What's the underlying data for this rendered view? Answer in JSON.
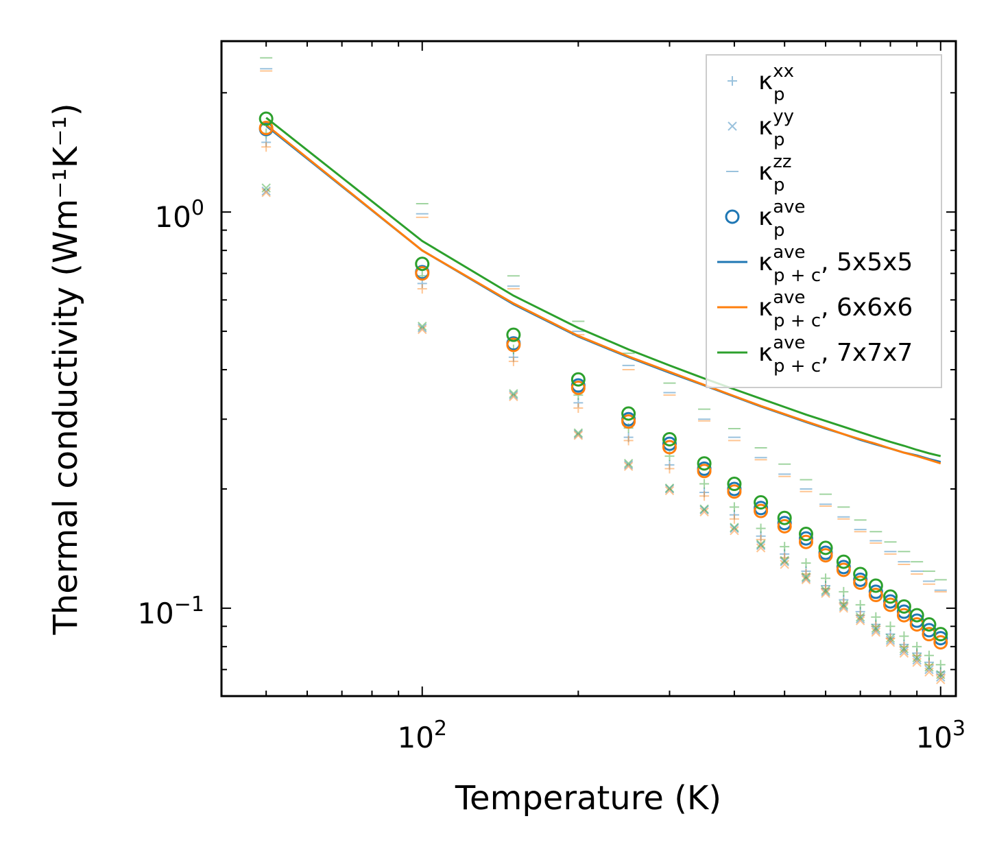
{
  "chart_data": {
    "type": "scatter",
    "title": "",
    "xlabel": "Temperature (K)",
    "ylabel": "Thermal conductivity (Wm⁻¹K⁻¹)",
    "xscale": "log",
    "yscale": "log",
    "xlim": [
      41,
      1070
    ],
    "ylim": [
      0.06,
      2.7
    ],
    "grid": false,
    "legend_position": "top-right",
    "x_major_ticks": [
      {
        "base": "10",
        "exp": "2"
      },
      {
        "base": "10",
        "exp": "3"
      }
    ],
    "y_major_ticks": [
      {
        "base": "10",
        "exp": "−1"
      },
      {
        "base": "10",
        "exp": "0"
      }
    ],
    "temperatures": [
      50,
      100,
      150,
      200,
      250,
      300,
      350,
      400,
      450,
      500,
      550,
      600,
      650,
      700,
      750,
      800,
      850,
      900,
      950,
      1000
    ],
    "colors": {
      "5x5x5": "#1f77b4",
      "6x6x6": "#ff7f0e",
      "7x7x7": "#2ca02c"
    },
    "legend": [
      {
        "marker": "plus",
        "kappa": "κ",
        "sub": "p",
        "sup": "xx",
        "suffix": ""
      },
      {
        "marker": "cross",
        "kappa": "κ",
        "sub": "p",
        "sup": "yy",
        "suffix": ""
      },
      {
        "marker": "hline",
        "kappa": "κ",
        "sub": "p",
        "sup": "zz",
        "suffix": ""
      },
      {
        "marker": "circle",
        "kappa": "κ",
        "sub": "p",
        "sup": "ave",
        "suffix": ""
      },
      {
        "marker": "line-5x5x5",
        "kappa": "κ",
        "sub": "p + c",
        "sup": "ave",
        "suffix": ", 5x5x5"
      },
      {
        "marker": "line-6x6x6",
        "kappa": "κ",
        "sub": "p + c",
        "sup": "ave",
        "suffix": ", 6x6x6"
      },
      {
        "marker": "line-7x7x7",
        "kappa": "κ",
        "sub": "p + c",
        "sup": "ave",
        "suffix": ", 7x7x7"
      }
    ],
    "series": [
      {
        "name": "kappa_p_xx 5x5x5",
        "marker": "plus",
        "color": "#1f77b4",
        "values": [
          1.5,
          0.66,
          0.43,
          0.33,
          0.27,
          0.23,
          0.196,
          0.172,
          0.152,
          0.137,
          0.124,
          0.114,
          0.105,
          0.098,
          0.091,
          0.086,
          0.081,
          0.077,
          0.073,
          0.069
        ]
      },
      {
        "name": "kappa_p_xx 6x6x6",
        "marker": "plus",
        "color": "#ff7f0e",
        "values": [
          1.46,
          0.64,
          0.42,
          0.32,
          0.265,
          0.225,
          0.192,
          0.168,
          0.149,
          0.134,
          0.122,
          0.112,
          0.103,
          0.096,
          0.09,
          0.084,
          0.08,
          0.076,
          0.072,
          0.068
        ]
      },
      {
        "name": "kappa_p_xx 7x7x7",
        "marker": "plus",
        "color": "#2ca02c",
        "values": [
          1.58,
          0.69,
          0.45,
          0.345,
          0.285,
          0.242,
          0.206,
          0.18,
          0.159,
          0.143,
          0.13,
          0.119,
          0.11,
          0.102,
          0.095,
          0.09,
          0.085,
          0.08,
          0.076,
          0.072
        ]
      },
      {
        "name": "kappa_p_yy 5x5x5",
        "marker": "cross",
        "color": "#1f77b4",
        "values": [
          1.13,
          0.51,
          0.345,
          0.275,
          0.23,
          0.2,
          0.177,
          0.159,
          0.144,
          0.131,
          0.119,
          0.11,
          0.101,
          0.094,
          0.088,
          0.083,
          0.078,
          0.074,
          0.07,
          0.067
        ]
      },
      {
        "name": "kappa_p_yy 6x6x6",
        "marker": "cross",
        "color": "#ff7f0e",
        "values": [
          1.12,
          0.505,
          0.342,
          0.273,
          0.228,
          0.198,
          0.175,
          0.157,
          0.142,
          0.129,
          0.118,
          0.109,
          0.1,
          0.093,
          0.087,
          0.082,
          0.077,
          0.073,
          0.069,
          0.066
        ]
      },
      {
        "name": "kappa_p_yy 7x7x7",
        "marker": "cross",
        "color": "#2ca02c",
        "values": [
          1.15,
          0.515,
          0.348,
          0.277,
          0.232,
          0.201,
          0.178,
          0.16,
          0.145,
          0.132,
          0.12,
          0.111,
          0.102,
          0.095,
          0.089,
          0.084,
          0.079,
          0.075,
          0.071,
          0.068
        ]
      },
      {
        "name": "kappa_p_zz 5x5x5",
        "marker": "hline",
        "color": "#1f77b4",
        "values": [
          2.3,
          0.99,
          0.65,
          0.5,
          0.41,
          0.35,
          0.3,
          0.27,
          0.24,
          0.218,
          0.2,
          0.183,
          0.17,
          0.158,
          0.148,
          0.139,
          0.131,
          0.124,
          0.117,
          0.111
        ]
      },
      {
        "name": "kappa_p_zz 6x6x6",
        "marker": "hline",
        "color": "#ff7f0e",
        "values": [
          2.27,
          0.97,
          0.64,
          0.49,
          0.4,
          0.345,
          0.297,
          0.265,
          0.237,
          0.215,
          0.197,
          0.181,
          0.168,
          0.156,
          0.146,
          0.137,
          0.129,
          0.122,
          0.115,
          0.11
        ]
      },
      {
        "name": "kappa_p_zz 7x7x7",
        "marker": "hline",
        "color": "#2ca02c",
        "values": [
          2.45,
          1.05,
          0.69,
          0.53,
          0.44,
          0.37,
          0.318,
          0.284,
          0.254,
          0.231,
          0.211,
          0.194,
          0.18,
          0.167,
          0.156,
          0.147,
          0.139,
          0.131,
          0.124,
          0.118
        ]
      },
      {
        "name": "kappa_p_ave 5x5x5",
        "marker": "circle",
        "color": "#1f77b4",
        "values": [
          1.62,
          0.705,
          0.466,
          0.365,
          0.3,
          0.26,
          0.225,
          0.2,
          0.179,
          0.164,
          0.15,
          0.138,
          0.127,
          0.118,
          0.11,
          0.104,
          0.098,
          0.093,
          0.088,
          0.084
        ]
      },
      {
        "name": "kappa_p_ave 6x6x6",
        "marker": "circle",
        "color": "#ff7f0e",
        "values": [
          1.63,
          0.7,
          0.462,
          0.36,
          0.296,
          0.255,
          0.222,
          0.197,
          0.176,
          0.161,
          0.147,
          0.136,
          0.125,
          0.116,
          0.108,
          0.102,
          0.096,
          0.091,
          0.086,
          0.082
        ]
      },
      {
        "name": "kappa_p_ave 7x7x7",
        "marker": "circle",
        "color": "#2ca02c",
        "values": [
          1.72,
          0.74,
          0.49,
          0.378,
          0.31,
          0.267,
          0.232,
          0.206,
          0.185,
          0.169,
          0.154,
          0.142,
          0.131,
          0.122,
          0.114,
          0.107,
          0.101,
          0.096,
          0.091,
          0.086
        ]
      },
      {
        "name": "kappa_pc_ave 5x5x5",
        "marker": "line",
        "color": "#1f77b4",
        "values": [
          1.65,
          0.8,
          0.585,
          0.485,
          0.43,
          0.393,
          0.365,
          0.342,
          0.323,
          0.308,
          0.295,
          0.284,
          0.275,
          0.266,
          0.259,
          0.253,
          0.247,
          0.243,
          0.238,
          0.234
        ]
      },
      {
        "name": "kappa_pc_ave 6x6x6",
        "marker": "line",
        "color": "#ff7f0e",
        "values": [
          1.66,
          0.8,
          0.588,
          0.487,
          0.432,
          0.395,
          0.366,
          0.343,
          0.324,
          0.309,
          0.296,
          0.285,
          0.275,
          0.267,
          0.26,
          0.253,
          0.247,
          0.242,
          0.237,
          0.232
        ]
      },
      {
        "name": "kappa_pc_ave 7x7x7",
        "marker": "line",
        "color": "#2ca02c",
        "values": [
          1.73,
          0.845,
          0.615,
          0.51,
          0.45,
          0.41,
          0.38,
          0.357,
          0.338,
          0.322,
          0.308,
          0.297,
          0.287,
          0.278,
          0.27,
          0.263,
          0.257,
          0.251,
          0.246,
          0.242
        ]
      }
    ]
  }
}
